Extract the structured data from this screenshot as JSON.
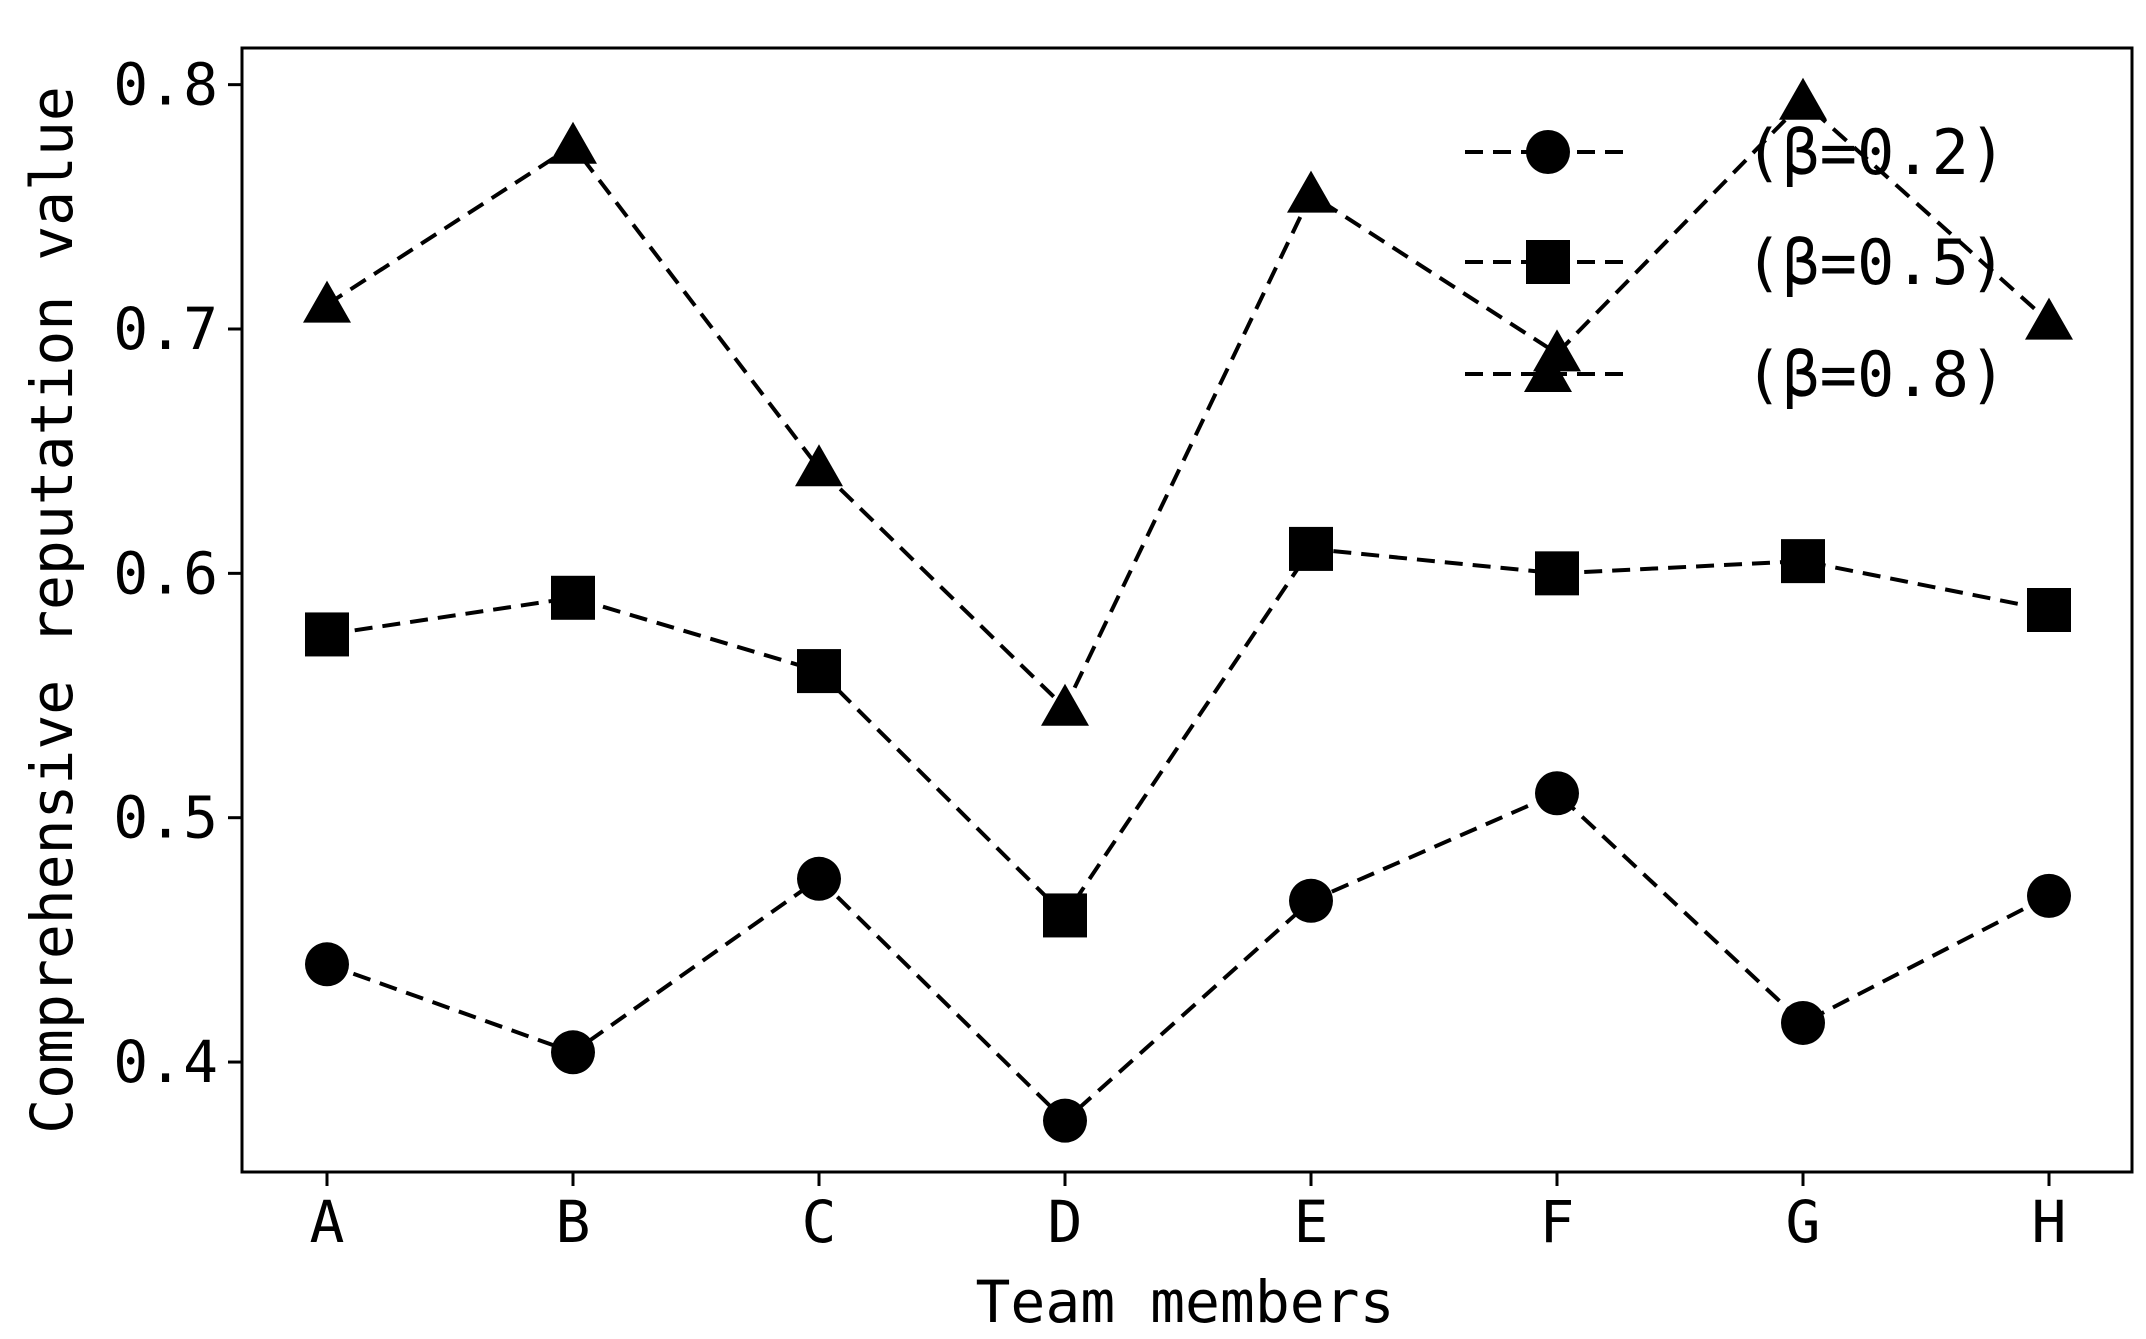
{
  "chart_data": {
    "type": "line",
    "title": "",
    "xlabel": "Team members",
    "ylabel": "Comprehensive reputation value",
    "categories": [
      "A",
      "B",
      "C",
      "D",
      "E",
      "F",
      "G",
      "H"
    ],
    "ylim": [
      0.355,
      0.815
    ],
    "yticks": [
      "0.4",
      "0.5",
      "0.6",
      "0.7",
      "0.8"
    ],
    "ytick_values": [
      0.4,
      0.5,
      0.6,
      0.7,
      0.8
    ],
    "grid": false,
    "legend_position": "top-right",
    "line_color": "#000000",
    "line_style": "dashed",
    "series": [
      {
        "name": "(β=0.2)",
        "marker": "circle",
        "values": [
          0.44,
          0.404,
          0.475,
          0.376,
          0.466,
          0.51,
          0.416,
          0.468
        ]
      },
      {
        "name": "(β=0.5)",
        "marker": "square",
        "values": [
          0.575,
          0.59,
          0.56,
          0.46,
          0.61,
          0.6,
          0.605,
          0.585
        ]
      },
      {
        "name": "(β=0.8)",
        "marker": "triangle",
        "values": [
          0.71,
          0.775,
          0.643,
          0.545,
          0.755,
          0.69,
          0.793,
          0.703
        ]
      }
    ]
  }
}
